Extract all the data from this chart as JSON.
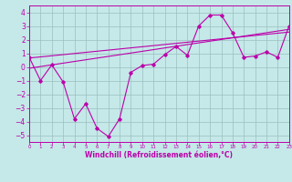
{
  "xlabel": "Windchill (Refroidissement éolien,°C)",
  "xlim": [
    0,
    23
  ],
  "ylim": [
    -5.5,
    4.5
  ],
  "yticks": [
    -5,
    -4,
    -3,
    -2,
    -1,
    0,
    1,
    2,
    3,
    4
  ],
  "xticks": [
    0,
    1,
    2,
    3,
    4,
    5,
    6,
    7,
    8,
    9,
    10,
    11,
    12,
    13,
    14,
    15,
    16,
    17,
    18,
    19,
    20,
    21,
    22,
    23
  ],
  "bg_color": "#c5e8e8",
  "grid_color": "#9bbfbf",
  "line_color": "#bb00aa",
  "line1_x": [
    0,
    1,
    2,
    3,
    4,
    5,
    6,
    7,
    8,
    9,
    10,
    11,
    12,
    13,
    14,
    15,
    16,
    17,
    18,
    19,
    20,
    21,
    22,
    23
  ],
  "line1_y": [
    0.7,
    -1.0,
    0.15,
    -1.1,
    -3.8,
    -2.7,
    -4.5,
    -5.1,
    -3.8,
    -0.4,
    0.1,
    0.2,
    0.9,
    1.5,
    0.85,
    3.0,
    3.8,
    3.8,
    2.5,
    0.7,
    0.8,
    1.1,
    0.7,
    3.0
  ],
  "line2_x": [
    0,
    23
  ],
  "line2_y": [
    0.65,
    2.55
  ],
  "line3_x": [
    0,
    23
  ],
  "line3_y": [
    -0.1,
    2.75
  ]
}
